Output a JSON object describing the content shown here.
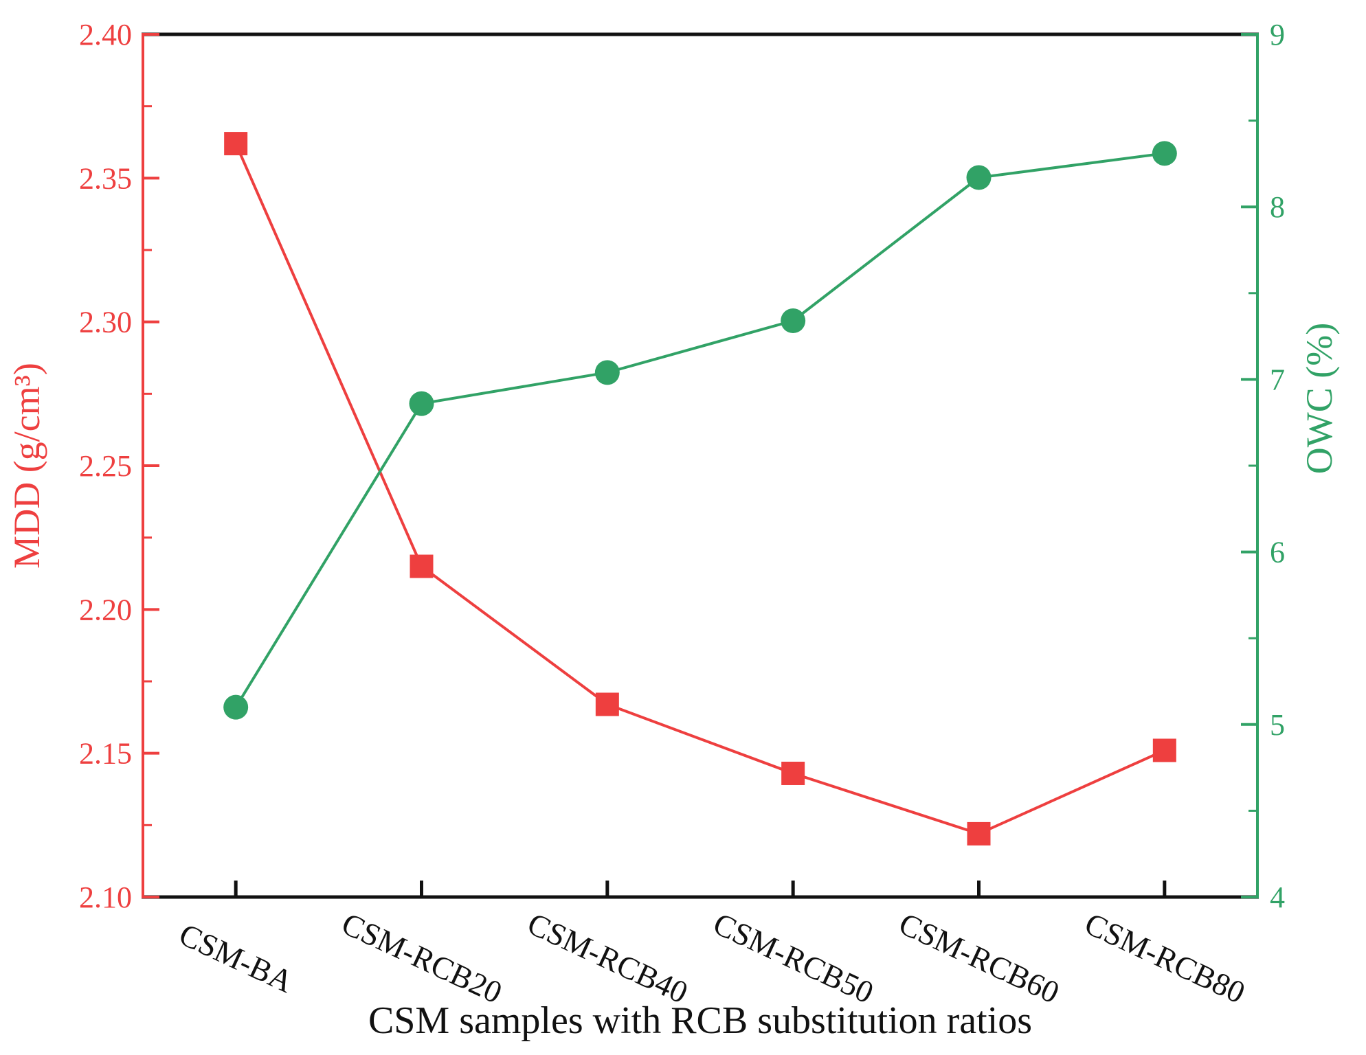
{
  "figure": {
    "background": "#ffffff",
    "frame_color": "#111111"
  },
  "chart_data": {
    "type": "line",
    "categories": [
      "CSM-BA",
      "CSM-RCB20",
      "CSM-RCB40",
      "CSM-RCB50",
      "CSM-RCB60",
      "CSM-RCB80"
    ],
    "series": [
      {
        "name": "MDD",
        "axis": "left",
        "marker": "square",
        "color": "#ee3f3f",
        "values": [
          2.362,
          2.215,
          2.167,
          2.143,
          2.122,
          2.151
        ]
      },
      {
        "name": "OWC",
        "axis": "right",
        "marker": "circle",
        "color": "#31a266",
        "values": [
          5.1,
          6.86,
          7.04,
          7.34,
          8.17,
          8.31
        ]
      }
    ],
    "left_axis": {
      "label": "MDD (g/cm³)",
      "color": "#ee3f3f",
      "min": 2.1,
      "max": 2.4,
      "major_step": 0.05,
      "minor_step": 0.025,
      "tick_labels": [
        "2.10",
        "2.15",
        "2.20",
        "2.25",
        "2.30",
        "2.35",
        "2.40"
      ]
    },
    "right_axis": {
      "label": "OWC (%)",
      "color": "#31a266",
      "min": 4,
      "max": 9,
      "major_step": 1,
      "minor_step": 0.5,
      "tick_labels": [
        "4",
        "5",
        "6",
        "7",
        "8",
        "9"
      ]
    },
    "x_axis": {
      "label": "CSM samples with RCB substitution ratios",
      "color": "#111111",
      "tick_label_rotation_deg": 25
    },
    "grid": false,
    "legend": null
  }
}
